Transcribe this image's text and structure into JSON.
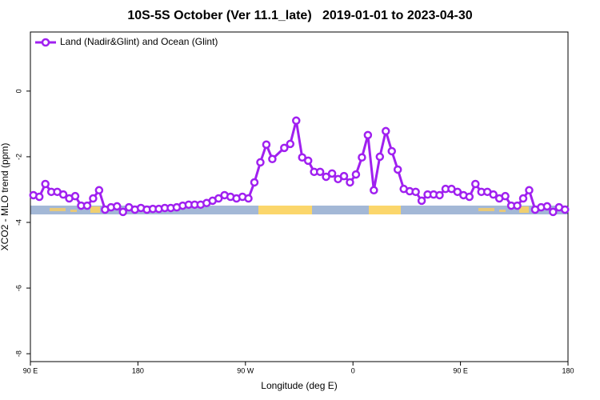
{
  "chart_data": {
    "type": "line",
    "title": "10S-5S October (Ver 11.1_late)   2019-01-01 to 2023-04-30",
    "x_label": "Longitude (deg E)",
    "y_label": "XCO2 - MLO trend (ppm)",
    "xlim": [
      90,
      540
    ],
    "ylim": [
      -8.24,
      1.8
    ],
    "xticks": [
      {
        "value": 90,
        "label": "90 E"
      },
      180,
      {
        "value": 270,
        "label": "90 W"
      },
      {
        "value": 360,
        "label": "0"
      },
      {
        "value": 450,
        "label": "90 E"
      },
      {
        "value": 540,
        "label": "180"
      }
    ],
    "yticks": [
      0,
      -2,
      -4,
      -6,
      -8
    ],
    "legend": "top-left",
    "x": [
      92.5,
      97.5,
      102.5,
      107.5,
      112.5,
      117.5,
      122.5,
      127.5,
      132.5,
      137.5,
      142.5,
      147.5,
      152.5,
      157.5,
      162.5,
      167.5,
      172.5,
      177.5,
      182.5,
      187.5,
      192.5,
      197.5,
      202.5,
      207.5,
      212.5,
      217.5,
      222.5,
      227.5,
      232.5,
      237.5,
      242.5,
      247.5,
      252.5,
      257.5,
      262.5,
      267.5,
      272.5,
      277.5,
      282.5,
      287.5,
      292.5,
      302.5,
      307.5,
      312.5,
      317.5,
      322.5,
      327.5,
      332.5,
      337.5,
      342.5,
      347.5,
      352.5,
      357.5,
      362.5,
      367.5,
      372.5,
      377.5,
      382.5,
      387.5,
      392.5,
      397.5,
      402.5,
      407.5,
      412.5,
      417.5,
      422.5,
      427.5,
      432.5,
      437.5,
      442.5,
      447.5,
      452.5,
      457.5,
      462.5,
      467.5,
      472.5,
      477.5,
      482.5,
      487.5,
      492.5,
      497.5,
      502.5,
      507.5,
      512.5,
      517.5,
      522.5,
      527.5,
      532.5,
      537.5
    ],
    "series": [
      {
        "name": "Land (Nadir&Glint) and Ocean (Glint)",
        "color": "#a020f0",
        "values": [
          -3.17,
          -3.22,
          -2.83,
          -3.07,
          -3.07,
          -3.15,
          -3.27,
          -3.2,
          -3.49,
          -3.49,
          -3.27,
          -3.02,
          -3.61,
          -3.54,
          -3.51,
          -3.68,
          -3.54,
          -3.61,
          -3.56,
          -3.61,
          -3.59,
          -3.59,
          -3.56,
          -3.56,
          -3.54,
          -3.49,
          -3.46,
          -3.46,
          -3.46,
          -3.41,
          -3.34,
          -3.27,
          -3.17,
          -3.22,
          -3.27,
          -3.22,
          -3.27,
          -2.78,
          -2.17,
          -1.63,
          -2.07,
          -1.73,
          -1.61,
          -0.9,
          -2.02,
          -2.12,
          -2.46,
          -2.46,
          -2.61,
          -2.51,
          -2.68,
          -2.59,
          -2.78,
          -2.54,
          -2.02,
          -1.34,
          -3.02,
          -2.0,
          -1.22,
          -1.83,
          -2.39,
          -2.98,
          -3.05,
          -3.07,
          -3.34,
          -3.15,
          -3.15,
          -3.17,
          -2.98,
          -2.98,
          -3.07,
          -3.17,
          -3.22,
          -2.83,
          -3.07,
          -3.07,
          -3.15,
          -3.27,
          -3.2,
          -3.49,
          -3.49,
          -3.27,
          -3.02,
          -3.61,
          -3.54,
          -3.51,
          -3.68,
          -3.54,
          -3.61
        ]
      }
    ]
  }
}
